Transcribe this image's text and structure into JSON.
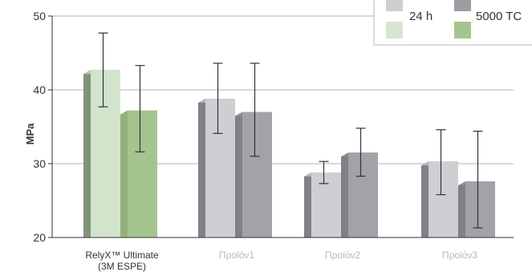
{
  "chart_data": {
    "type": "bar",
    "ylabel": "MPa",
    "ylim": [
      20,
      50
    ],
    "yticks": [
      "20",
      "30",
      "40",
      "50"
    ],
    "categories": [
      {
        "lines": [
          "RelyX™ Ultimate",
          "(3M ESPE)"
        ]
      },
      {
        "lines": [
          "Προϊόν1"
        ]
      },
      {
        "lines": [
          "Προϊόν2"
        ]
      },
      {
        "lines": [
          "Προϊόν3"
        ]
      }
    ],
    "series": [
      {
        "name": "24 h",
        "values": [
          42.7,
          38.8,
          28.8,
          30.3
        ],
        "error_low": [
          37.7,
          34.1,
          27.3,
          25.8
        ],
        "error_high": [
          47.7,
          43.6,
          30.3,
          34.6
        ]
      },
      {
        "name": "5000 TC",
        "values": [
          37.2,
          37.0,
          31.5,
          27.6
        ],
        "error_low": [
          31.6,
          31.0,
          28.3,
          21.3
        ],
        "error_high": [
          43.3,
          43.6,
          34.8,
          34.4
        ]
      }
    ],
    "grid": true,
    "legend": "top-right",
    "colors": {
      "series_24h_first": "#d3e4cd",
      "series_tc_first": "#a4c48d",
      "series_24h_side_first": "#80947a",
      "series_24h": "#cfcfd3",
      "series_tc": "#a2a2a8",
      "side": "#808088",
      "grid": "#b3b3b3",
      "axis": "#333333",
      "muted_label": "#b8b8bf"
    }
  }
}
